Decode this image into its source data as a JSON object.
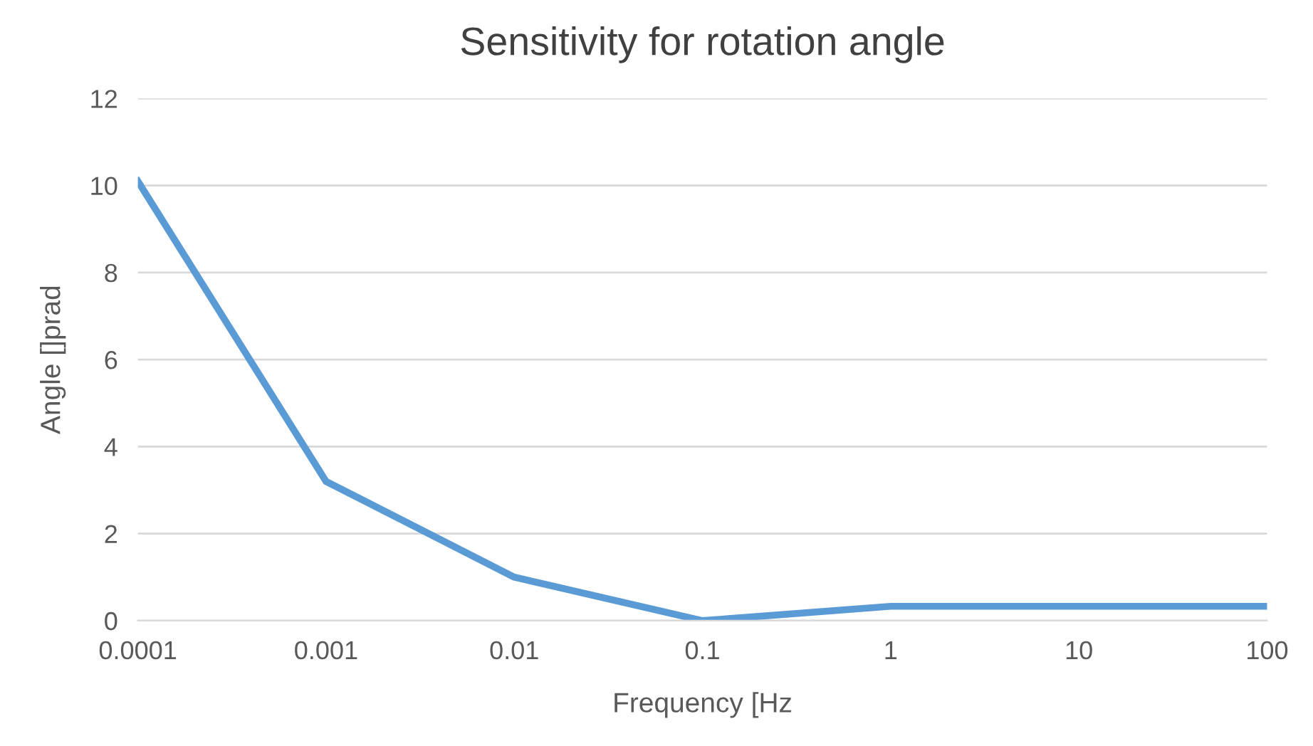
{
  "chart_data": {
    "type": "line",
    "title": "Sensitivity for rotation angle",
    "xlabel": "Frequency [Hz",
    "ylabel": "Angle []prad",
    "categories": [
      "0.0001",
      "0.001",
      "0.01",
      "0.1",
      "1",
      "10",
      "100"
    ],
    "series": [
      {
        "color": "#5b9bd5",
        "values": [
          10.1,
          3.2,
          1.0,
          0.0,
          0.33,
          0.33,
          0.33
        ]
      }
    ],
    "ylim": [
      0,
      12
    ],
    "yticks": [
      0,
      2,
      4,
      6,
      8,
      10,
      12
    ],
    "grid": "y",
    "legend": false,
    "marker": "none",
    "line_style": "solid"
  }
}
